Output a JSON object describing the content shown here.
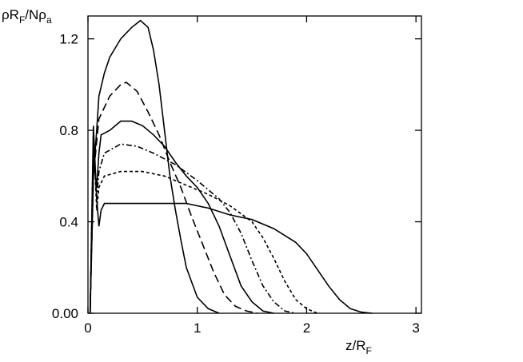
{
  "chart_data": {
    "type": "line",
    "ylabel": [
      "ρR",
      "F",
      "/Nρ",
      "a"
    ],
    "xlabel": [
      "z/R",
      "F"
    ],
    "xlim": [
      0,
      3.05
    ],
    "ylim": [
      0,
      1.3
    ],
    "xticks": [
      0,
      1,
      2,
      3
    ],
    "yticks": [
      {
        "value": 0,
        "label": "0.00"
      },
      0.4,
      0.8,
      1.2
    ],
    "series": [
      {
        "color": "#000000",
        "line_style": "solid",
        "x": [
          0.02,
          0.05,
          0.08,
          0.1,
          0.15,
          0.2,
          0.3,
          0.4,
          0.48,
          0.55,
          0.6,
          0.65,
          0.7,
          0.75,
          0.8,
          0.85,
          0.9,
          1.0,
          1.1,
          1.2
        ],
        "values": [
          0,
          0.6,
          0.8,
          0.95,
          1.05,
          1.12,
          1.2,
          1.25,
          1.28,
          1.25,
          1.15,
          1.0,
          0.8,
          0.6,
          0.45,
          0.32,
          0.2,
          0.07,
          0.02,
          0
        ]
      },
      {
        "color": "#000000",
        "line_style": "dashed",
        "x": [
          0.02,
          0.05,
          0.08,
          0.1,
          0.15,
          0.2,
          0.3,
          0.35,
          0.45,
          0.55,
          0.65,
          0.75,
          0.85,
          0.95,
          1.05,
          1.15,
          1.25,
          1.35,
          1.45,
          1.55
        ],
        "values": [
          0,
          0.6,
          0.75,
          0.85,
          0.9,
          0.95,
          1.0,
          1.01,
          0.97,
          0.88,
          0.78,
          0.66,
          0.55,
          0.42,
          0.3,
          0.18,
          0.08,
          0.03,
          0.01,
          0
        ]
      },
      {
        "color": "#000000",
        "line_style": "solid",
        "x": [
          0.02,
          0.05,
          0.08,
          0.1,
          0.12,
          0.2,
          0.3,
          0.4,
          0.5,
          0.6,
          0.7,
          0.8,
          0.9,
          1.0,
          1.1,
          1.2,
          1.3,
          1.4,
          1.5,
          1.6,
          1.7
        ],
        "values": [
          0,
          0.7,
          0.55,
          0.7,
          0.78,
          0.8,
          0.84,
          0.84,
          0.82,
          0.78,
          0.73,
          0.66,
          0.6,
          0.55,
          0.48,
          0.38,
          0.25,
          0.12,
          0.05,
          0.01,
          0
        ]
      },
      {
        "color": "#000000",
        "line_style": "dashdot",
        "x": [
          0.02,
          0.05,
          0.08,
          0.1,
          0.15,
          0.3,
          0.45,
          0.6,
          0.8,
          1.0,
          1.2,
          1.3,
          1.4,
          1.5,
          1.6,
          1.7,
          1.8,
          1.9
        ],
        "values": [
          0,
          0.75,
          0.5,
          0.62,
          0.7,
          0.74,
          0.73,
          0.7,
          0.65,
          0.58,
          0.5,
          0.44,
          0.35,
          0.23,
          0.12,
          0.05,
          0.01,
          0
        ]
      },
      {
        "color": "#000000",
        "line_style": "dotted",
        "x": [
          0.02,
          0.05,
          0.08,
          0.1,
          0.15,
          0.3,
          0.5,
          0.7,
          0.9,
          1.1,
          1.3,
          1.5,
          1.6,
          1.7,
          1.8,
          1.9,
          2.0,
          2.1
        ],
        "values": [
          0,
          0.8,
          0.45,
          0.55,
          0.6,
          0.62,
          0.62,
          0.6,
          0.56,
          0.52,
          0.47,
          0.4,
          0.33,
          0.24,
          0.14,
          0.06,
          0.02,
          0
        ]
      },
      {
        "color": "#000000",
        "line_style": "solid",
        "x": [
          0.02,
          0.05,
          0.08,
          0.1,
          0.12,
          0.15,
          0.3,
          0.6,
          0.9,
          1.1,
          1.3,
          1.5,
          1.7,
          1.9,
          2.0,
          2.1,
          2.2,
          2.3,
          2.4,
          2.5,
          2.6
        ],
        "values": [
          0,
          0.82,
          0.5,
          0.38,
          0.45,
          0.48,
          0.48,
          0.48,
          0.48,
          0.46,
          0.43,
          0.41,
          0.37,
          0.31,
          0.26,
          0.19,
          0.12,
          0.06,
          0.02,
          0.005,
          0
        ]
      }
    ]
  }
}
